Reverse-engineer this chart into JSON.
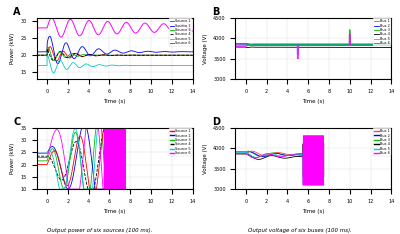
{
  "title_A": "A",
  "title_B": "B",
  "title_C": "C",
  "title_D": "D",
  "xlabel": "Time (s)",
  "ylabel_power": "Power (kW)",
  "ylabel_voltage": "Voltage (V)",
  "caption_left": "Output power of six sources (100 ms).",
  "caption_right": "Output voltage of six buses (100 ms).",
  "source_colors": [
    "#ff0000",
    "#0000ff",
    "#00bb00",
    "#000000",
    "#00cccc",
    "#ff00ff"
  ],
  "bus_colors": [
    "#ff4444",
    "#0000ff",
    "#00bb00",
    "#000000",
    "#00cccc",
    "#ff00ff"
  ],
  "source_labels": [
    "Source 1",
    "Source 2",
    "Source 3",
    "Source 4",
    "Source 5",
    "Source 6"
  ],
  "bus_labels": [
    "Bus 1",
    "Bus 2",
    "Bus 3",
    "Bus 4",
    "Bus 5",
    "Bus 6"
  ],
  "t_max": 14,
  "t_min": -1,
  "power_ylim_A": [
    13,
    31
  ],
  "voltage_ylim_B": [
    3000,
    4500
  ],
  "voltage_yticks_B": [
    3000,
    3500,
    4000,
    4500
  ],
  "power_ylim_C": [
    10,
    35
  ],
  "voltage_ylim_D": [
    3000,
    4500
  ]
}
